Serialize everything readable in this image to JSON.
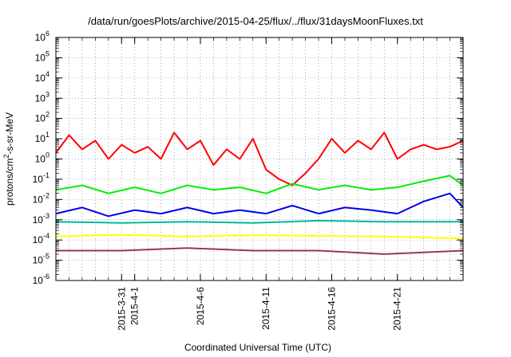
{
  "chart_data": {
    "type": "line",
    "title": "/data/run/goesPlots/archive/2015-04-25/flux/../flux/31daysMoonFluxes.txt",
    "xlabel": "Coordinated Universal Time (UTC)",
    "ylabel_prefix": "protons/cm",
    "ylabel_sup": "2",
    "ylabel_suffix": "-s-sr-MeV",
    "yscale": "log",
    "ylim": [
      1e-06,
      1000000.0
    ],
    "xlim": [
      "2015-03-26",
      "2015-04-26"
    ],
    "grid": true,
    "x_ticks": [
      {
        "date": "2015-03-31",
        "label": "2015-3-31"
      },
      {
        "date": "2015-04-01",
        "label": "2015-4-1"
      },
      {
        "date": "2015-04-06",
        "label": "2015-4-6"
      },
      {
        "date": "2015-04-11",
        "label": "2015-4-11"
      },
      {
        "date": "2015-04-16",
        "label": "2015-4-16"
      },
      {
        "date": "2015-04-21",
        "label": "2015-4-21"
      }
    ],
    "y_ticks": [
      {
        "value": 1e-06,
        "exp": "-6"
      },
      {
        "value": 1e-05,
        "exp": "-5"
      },
      {
        "value": 0.0001,
        "exp": "-4"
      },
      {
        "value": 0.001,
        "exp": "-3"
      },
      {
        "value": 0.01,
        "exp": "-2"
      },
      {
        "value": 0.1,
        "exp": "-1"
      },
      {
        "value": 1,
        "exp": "0"
      },
      {
        "value": 10,
        "exp": "1"
      },
      {
        "value": 100,
        "exp": "2"
      },
      {
        "value": 1000,
        "exp": "3"
      },
      {
        "value": 10000,
        "exp": "4"
      },
      {
        "value": 100000,
        "exp": "5"
      },
      {
        "value": 1000000,
        "exp": "6"
      }
    ],
    "series": [
      {
        "color": "#ff0000",
        "x": [
          "2015-03-26",
          "2015-03-27",
          "2015-03-28",
          "2015-03-29",
          "2015-03-30",
          "2015-03-31",
          "2015-04-01",
          "2015-04-02",
          "2015-04-03",
          "2015-04-04",
          "2015-04-05",
          "2015-04-06",
          "2015-04-07",
          "2015-04-08",
          "2015-04-09",
          "2015-04-10",
          "2015-04-11",
          "2015-04-12",
          "2015-04-13",
          "2015-04-14",
          "2015-04-15",
          "2015-04-16",
          "2015-04-17",
          "2015-04-18",
          "2015-04-19",
          "2015-04-20",
          "2015-04-21",
          "2015-04-22",
          "2015-04-23",
          "2015-04-24",
          "2015-04-25",
          "2015-04-26"
        ],
        "values": [
          2,
          15,
          3,
          8,
          1,
          5,
          2,
          4,
          1,
          20,
          3,
          8,
          0.5,
          3,
          1,
          10,
          0.3,
          0.1,
          0.05,
          0.2,
          1,
          10,
          2,
          8,
          3,
          20,
          1,
          3,
          5,
          3,
          4,
          8
        ]
      },
      {
        "color": "#00ee00",
        "x": [
          "2015-03-26",
          "2015-03-28",
          "2015-03-30",
          "2015-04-01",
          "2015-04-03",
          "2015-04-05",
          "2015-04-07",
          "2015-04-09",
          "2015-04-11",
          "2015-04-13",
          "2015-04-15",
          "2015-04-17",
          "2015-04-19",
          "2015-04-21",
          "2015-04-23",
          "2015-04-25",
          "2015-04-26"
        ],
        "values": [
          0.03,
          0.05,
          0.02,
          0.04,
          0.02,
          0.05,
          0.03,
          0.04,
          0.02,
          0.06,
          0.03,
          0.05,
          0.03,
          0.04,
          0.08,
          0.15,
          0.05
        ]
      },
      {
        "color": "#0000ee",
        "x": [
          "2015-03-26",
          "2015-03-28",
          "2015-03-30",
          "2015-04-01",
          "2015-04-03",
          "2015-04-05",
          "2015-04-07",
          "2015-04-09",
          "2015-04-11",
          "2015-04-13",
          "2015-04-15",
          "2015-04-17",
          "2015-04-19",
          "2015-04-21",
          "2015-04-23",
          "2015-04-25",
          "2015-04-26"
        ],
        "values": [
          0.002,
          0.004,
          0.0015,
          0.003,
          0.002,
          0.004,
          0.002,
          0.003,
          0.002,
          0.005,
          0.002,
          0.004,
          0.003,
          0.002,
          0.008,
          0.02,
          0.004
        ]
      },
      {
        "color": "#00b89c",
        "x": [
          "2015-03-26",
          "2015-03-31",
          "2015-04-05",
          "2015-04-10",
          "2015-04-15",
          "2015-04-20",
          "2015-04-26"
        ],
        "values": [
          0.0008,
          0.0007,
          0.0008,
          0.0007,
          0.0009,
          0.0008,
          0.0008
        ]
      },
      {
        "color": "#ffff00",
        "x": [
          "2015-03-26",
          "2015-03-31",
          "2015-04-05",
          "2015-04-10",
          "2015-04-15",
          "2015-04-20",
          "2015-04-26"
        ],
        "values": [
          0.00015,
          0.00018,
          0.00015,
          0.00017,
          0.00016,
          0.00015,
          0.00012
        ]
      },
      {
        "color": "#993366",
        "x": [
          "2015-03-26",
          "2015-03-31",
          "2015-04-05",
          "2015-04-10",
          "2015-04-15",
          "2015-04-20",
          "2015-04-26"
        ],
        "values": [
          3e-05,
          3e-05,
          4e-05,
          3e-05,
          3e-05,
          2e-05,
          3e-05
        ]
      }
    ]
  }
}
